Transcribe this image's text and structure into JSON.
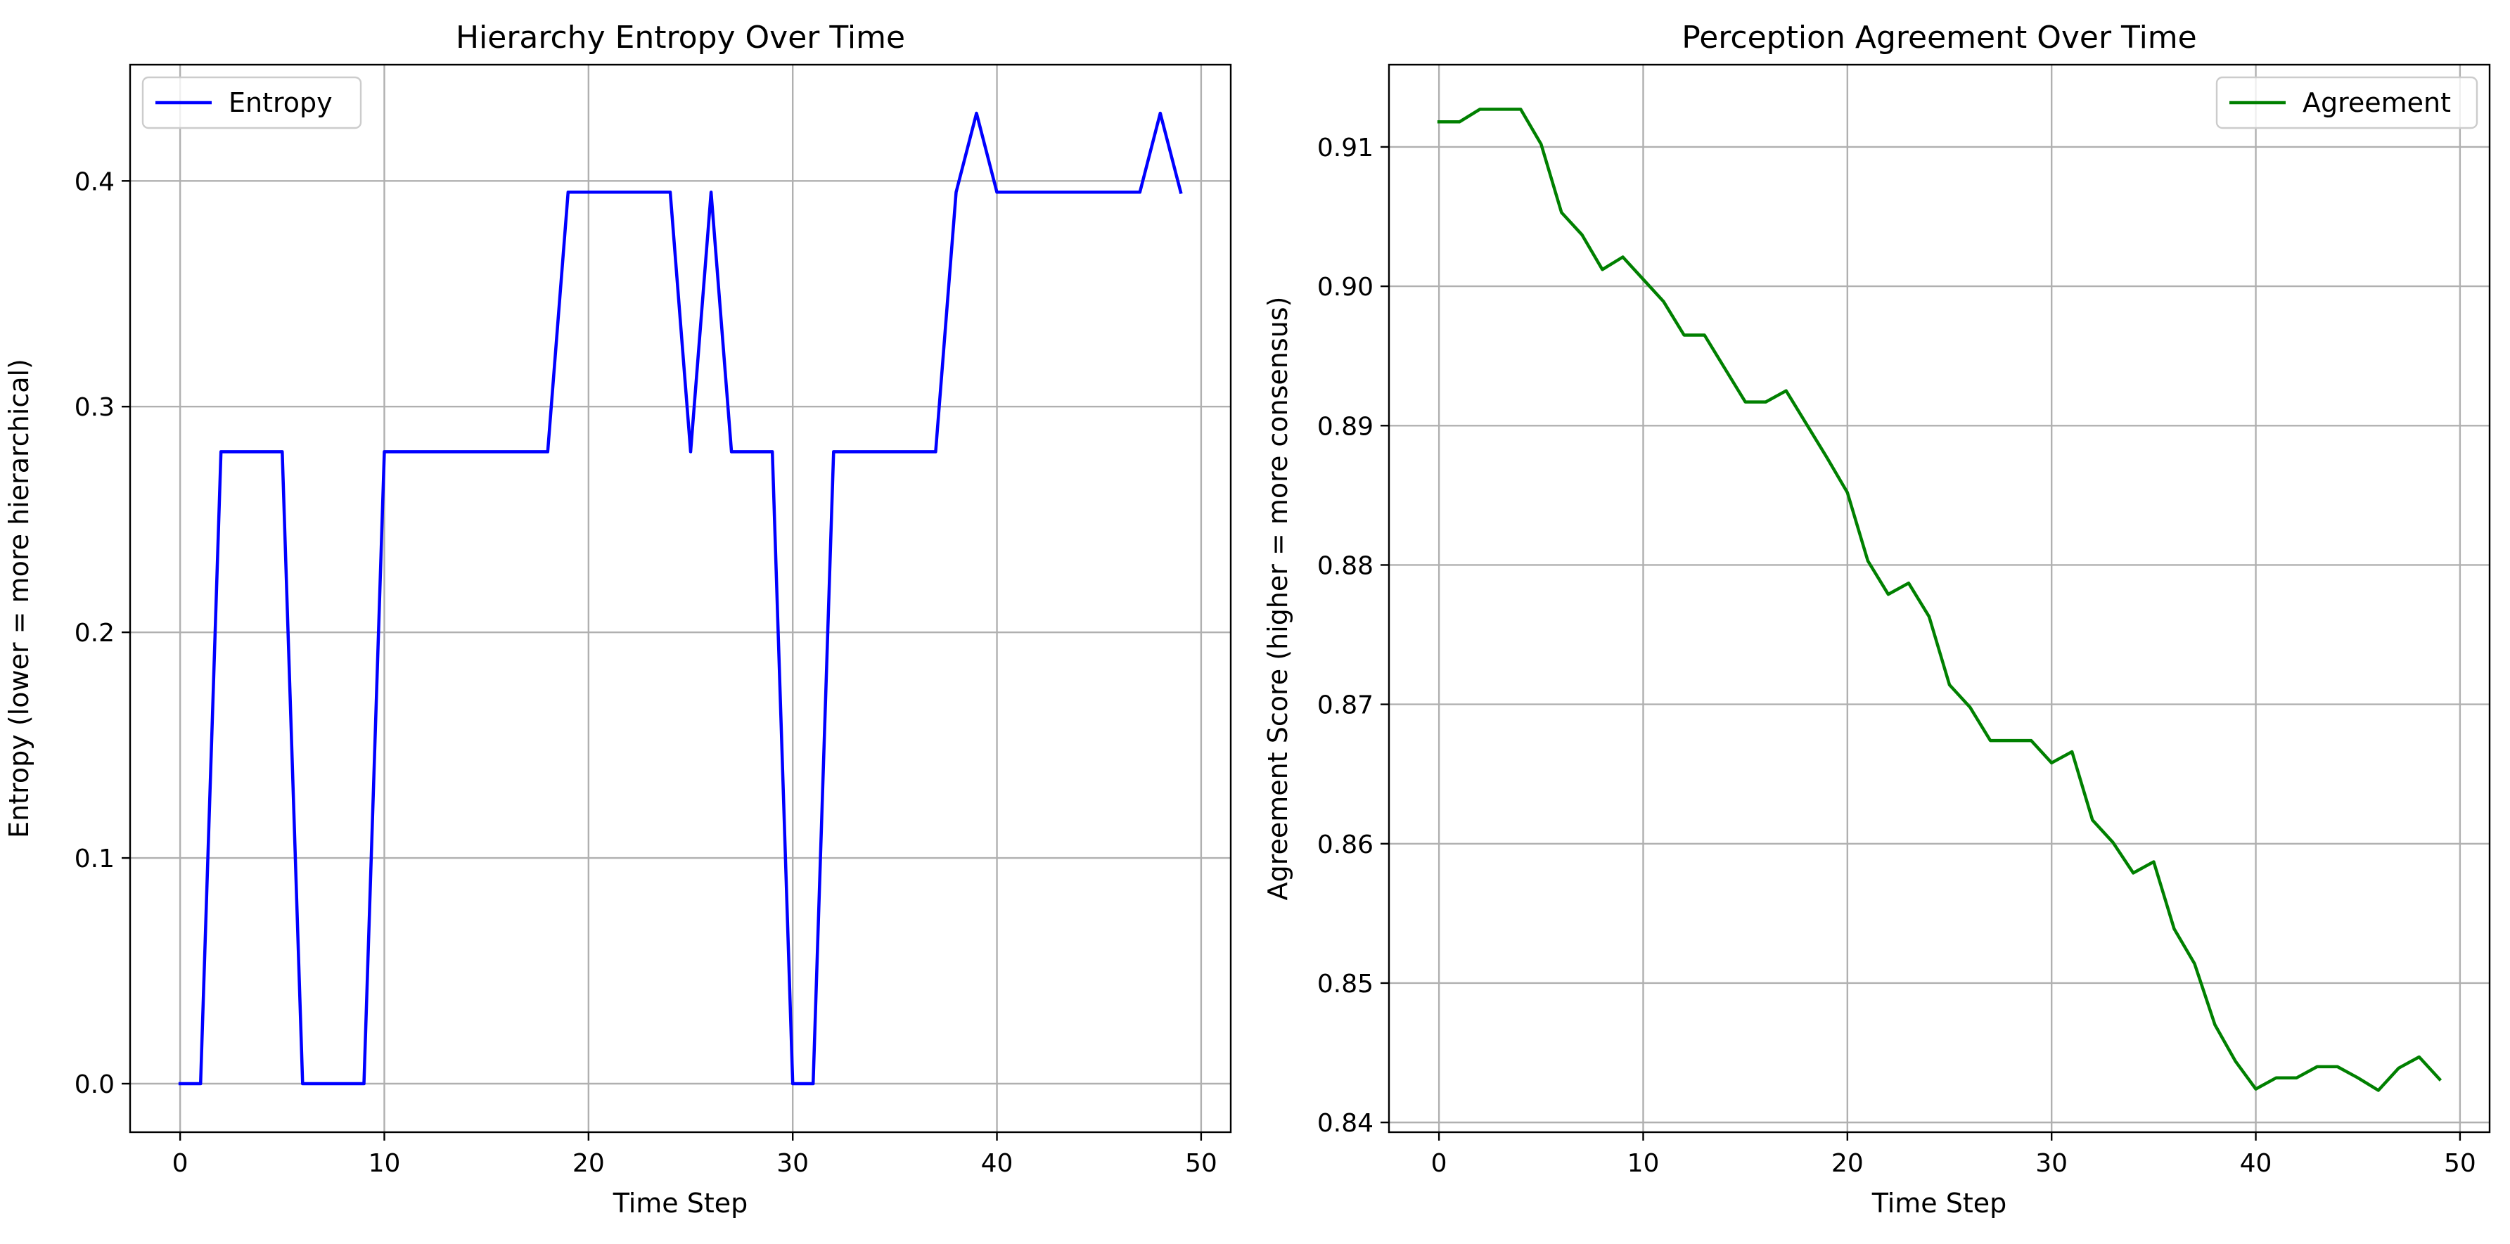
{
  "chart_data": [
    {
      "type": "line",
      "title": "Hierarchy Entropy Over Time",
      "xlabel": "Time Step",
      "ylabel": "Entropy (lower = more hierarchical)",
      "xlim": [
        -2.45,
        51.45
      ],
      "ylim": [
        -0.0215,
        0.4515
      ],
      "xticks": [
        0,
        10,
        20,
        30,
        40,
        50
      ],
      "yticks": [
        0.0,
        0.1,
        0.2,
        0.3,
        0.4
      ],
      "ytick_decimals": 1,
      "grid": true,
      "legend_position": "top-left",
      "series": [
        {
          "name": "Entropy",
          "color": "#0000ff",
          "x": [
            0,
            1,
            2,
            3,
            4,
            5,
            6,
            7,
            8,
            9,
            10,
            11,
            12,
            13,
            14,
            15,
            16,
            17,
            18,
            19,
            20,
            21,
            22,
            23,
            24,
            25,
            26,
            27,
            28,
            29,
            30,
            31,
            32,
            33,
            34,
            35,
            36,
            37,
            38,
            39,
            40,
            41,
            42,
            43,
            44,
            45,
            46,
            47,
            48,
            49
          ],
          "values": [
            0,
            0,
            0.28,
            0.28,
            0.28,
            0.28,
            0,
            0,
            0,
            0,
            0.28,
            0.28,
            0.28,
            0.28,
            0.28,
            0.28,
            0.28,
            0.28,
            0.28,
            0.395,
            0.395,
            0.395,
            0.395,
            0.395,
            0.395,
            0.28,
            0.395,
            0.28,
            0.28,
            0.28,
            0,
            0,
            0.28,
            0.28,
            0.28,
            0.28,
            0.28,
            0.28,
            0.395,
            0.43,
            0.395,
            0.395,
            0.395,
            0.395,
            0.395,
            0.395,
            0.395,
            0.395,
            0.43,
            0.395
          ]
        }
      ]
    },
    {
      "type": "line",
      "title": "Perception Agreement Over Time",
      "xlabel": "Time Step",
      "ylabel": "Agreement Score (higher = more consensus)",
      "xlim": [
        -2.45,
        51.45
      ],
      "ylim": [
        0.8393,
        0.9159
      ],
      "xticks": [
        0,
        10,
        20,
        30,
        40,
        50
      ],
      "yticks": [
        0.84,
        0.85,
        0.86,
        0.87,
        0.88,
        0.89,
        0.9,
        0.91
      ],
      "ytick_decimals": 2,
      "grid": true,
      "legend_position": "top-right",
      "series": [
        {
          "name": "Agreement",
          "color": "#008000",
          "x": [
            0,
            1,
            2,
            3,
            4,
            5,
            6,
            7,
            8,
            9,
            10,
            11,
            12,
            13,
            14,
            15,
            16,
            17,
            18,
            19,
            20,
            21,
            22,
            23,
            24,
            25,
            26,
            27,
            28,
            29,
            30,
            31,
            32,
            33,
            34,
            35,
            36,
            37,
            38,
            39,
            40,
            41,
            42,
            43,
            44,
            45,
            46,
            47,
            48,
            49
          ],
          "values": [
            0.9118,
            0.9118,
            0.9127,
            0.9127,
            0.9127,
            0.9102,
            0.9053,
            0.9037,
            0.9012,
            0.9021,
            0.9005,
            0.8989,
            0.8965,
            0.8965,
            0.8941,
            0.8917,
            0.8917,
            0.8925,
            0.8901,
            0.8877,
            0.8852,
            0.8803,
            0.8779,
            0.8787,
            0.8763,
            0.8714,
            0.8698,
            0.8674,
            0.8674,
            0.8674,
            0.8658,
            0.8666,
            0.8617,
            0.8601,
            0.8579,
            0.8587,
            0.8539,
            0.8514,
            0.847,
            0.8444,
            0.8424,
            0.8432,
            0.8432,
            0.844,
            0.844,
            0.8432,
            0.8423,
            0.8439,
            0.8447,
            0.8431
          ]
        }
      ]
    }
  ]
}
